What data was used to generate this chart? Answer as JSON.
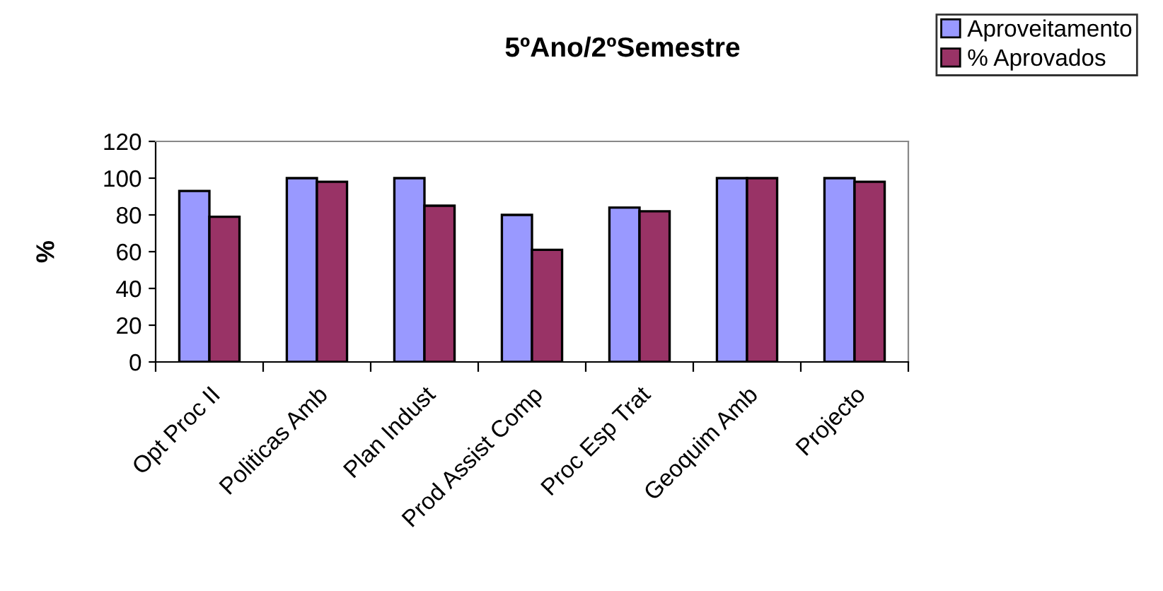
{
  "chart_data": {
    "type": "bar",
    "title": "5ºAno/2ºSemestre",
    "ylabel": "%",
    "categories": [
      "Opt Proc II",
      "Politicas Amb",
      "Plan Indust",
      "Prod Assist Comp",
      "Proc Esp Trat",
      "Geoquim Amb",
      "Projecto"
    ],
    "series": [
      {
        "name": "Aproveitamento",
        "color": "#9999ff",
        "values": [
          93,
          100,
          100,
          80,
          84,
          100,
          100
        ]
      },
      {
        "name": "% Aprovados",
        "color": "#993366",
        "values": [
          79,
          98,
          85,
          61,
          82,
          100,
          98
        ]
      }
    ],
    "ylim": [
      0,
      120
    ],
    "yticks": [
      0,
      20,
      40,
      60,
      80,
      100,
      120
    ],
    "grid": false,
    "legend": "top right"
  }
}
